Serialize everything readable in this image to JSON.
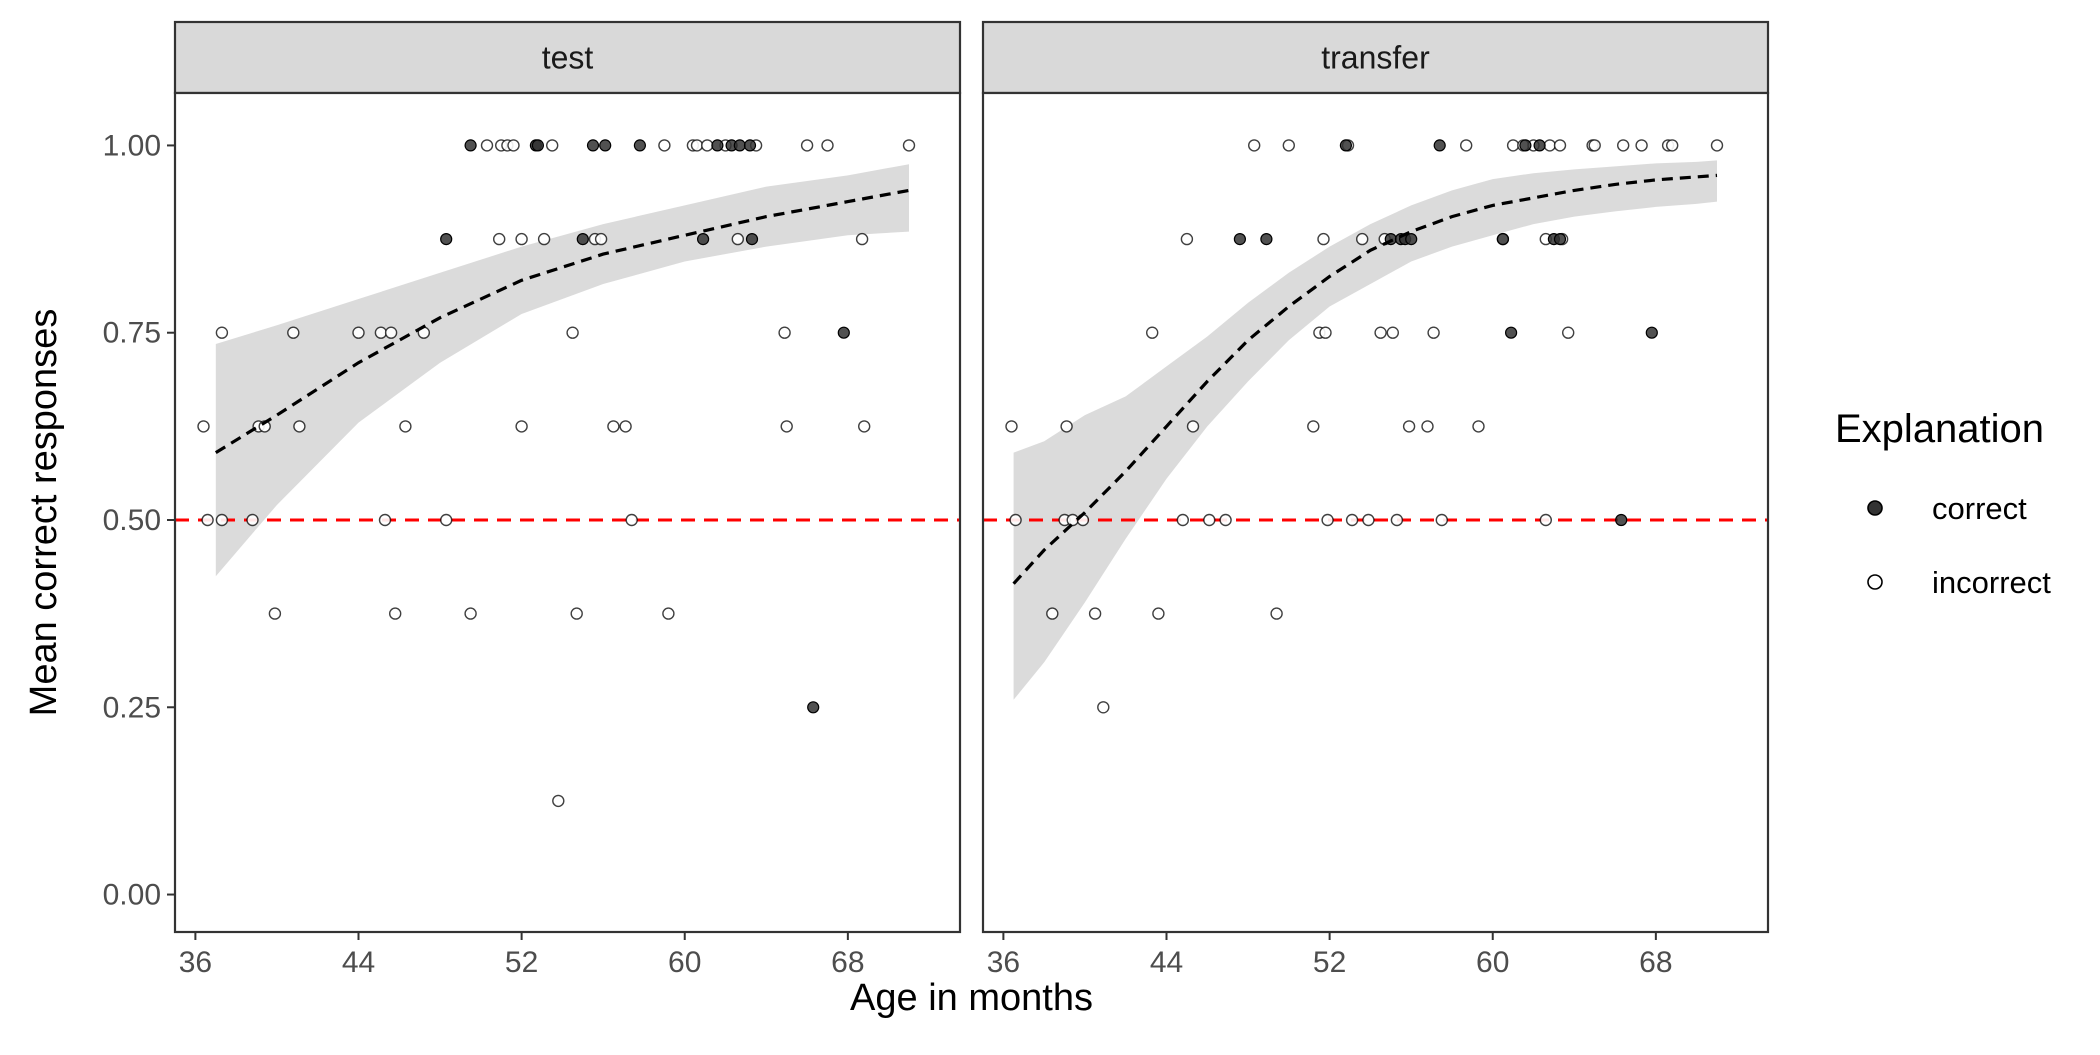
{
  "chart_data": {
    "type": "scatter",
    "xlabel": "Age in months",
    "ylabel": "Mean correct responses",
    "xlim": [
      35,
      73.5
    ],
    "ylim": [
      -0.05,
      1.07
    ],
    "x_ticks": [
      36,
      44,
      52,
      60,
      68
    ],
    "y_ticks": [
      0.0,
      0.25,
      0.5,
      0.75,
      1.0
    ],
    "y_tick_labels": [
      "0.00",
      "0.25",
      "0.50",
      "0.75",
      "1.00"
    ],
    "reference_line": {
      "y": 0.5,
      "style": "dashed",
      "color": "#ff0000"
    },
    "legend": {
      "title": "Explanation",
      "position": "right",
      "entries": [
        {
          "label": "correct",
          "fill": "#333333"
        },
        {
          "label": "incorrect",
          "fill": "#ffffff"
        }
      ]
    },
    "colors": {
      "panel_strip": "#d9d9d9",
      "ribbon": "#d9d9d9",
      "trend": "#000000",
      "reference": "#ff0000"
    },
    "panels": [
      {
        "label": "test",
        "trend_line": {
          "x": [
            37,
            40,
            44,
            48,
            52,
            56,
            60,
            64,
            68,
            71
          ],
          "y": [
            0.59,
            0.64,
            0.71,
            0.77,
            0.82,
            0.855,
            0.88,
            0.905,
            0.925,
            0.94
          ]
        },
        "confidence_band": {
          "x": [
            37,
            40,
            44,
            48,
            52,
            56,
            60,
            64,
            68,
            71
          ],
          "lower": [
            0.425,
            0.52,
            0.63,
            0.71,
            0.775,
            0.815,
            0.845,
            0.865,
            0.88,
            0.885
          ],
          "upper": [
            0.735,
            0.76,
            0.795,
            0.83,
            0.865,
            0.895,
            0.92,
            0.945,
            0.96,
            0.975
          ]
        },
        "points_correct": [
          [
            49.5,
            1.0
          ],
          [
            52.7,
            1.0
          ],
          [
            52.8,
            1.0
          ],
          [
            55.5,
            1.0
          ],
          [
            56.1,
            1.0
          ],
          [
            57.8,
            1.0
          ],
          [
            61.6,
            1.0
          ],
          [
            62.3,
            1.0
          ],
          [
            62.7,
            1.0
          ],
          [
            63.2,
            1.0
          ],
          [
            48.3,
            0.875
          ],
          [
            55.0,
            0.875
          ],
          [
            60.9,
            0.875
          ],
          [
            63.3,
            0.875
          ],
          [
            67.8,
            0.75
          ],
          [
            66.3,
            0.25
          ]
        ],
        "points_incorrect": [
          [
            50.3,
            1.0
          ],
          [
            51.0,
            1.0
          ],
          [
            51.3,
            1.0
          ],
          [
            51.6,
            1.0
          ],
          [
            53.5,
            1.0
          ],
          [
            59.0,
            1.0
          ],
          [
            60.4,
            1.0
          ],
          [
            60.6,
            1.0
          ],
          [
            61.1,
            1.0
          ],
          [
            62.0,
            1.0
          ],
          [
            63.5,
            1.0
          ],
          [
            66.0,
            1.0
          ],
          [
            67.0,
            1.0
          ],
          [
            71.0,
            1.0
          ],
          [
            50.9,
            0.875
          ],
          [
            52.0,
            0.875
          ],
          [
            53.1,
            0.875
          ],
          [
            55.6,
            0.875
          ],
          [
            55.9,
            0.875
          ],
          [
            62.6,
            0.875
          ],
          [
            68.7,
            0.875
          ],
          [
            37.3,
            0.75
          ],
          [
            40.8,
            0.75
          ],
          [
            44.0,
            0.75
          ],
          [
            45.1,
            0.75
          ],
          [
            45.6,
            0.75
          ],
          [
            47.2,
            0.75
          ],
          [
            54.5,
            0.75
          ],
          [
            64.9,
            0.75
          ],
          [
            36.4,
            0.625
          ],
          [
            39.1,
            0.625
          ],
          [
            39.4,
            0.625
          ],
          [
            41.1,
            0.625
          ],
          [
            46.3,
            0.625
          ],
          [
            52.0,
            0.625
          ],
          [
            56.5,
            0.625
          ],
          [
            57.1,
            0.625
          ],
          [
            65.0,
            0.625
          ],
          [
            68.8,
            0.625
          ],
          [
            36.6,
            0.5
          ],
          [
            37.3,
            0.5
          ],
          [
            38.8,
            0.5
          ],
          [
            45.3,
            0.5
          ],
          [
            48.3,
            0.5
          ],
          [
            57.4,
            0.5
          ],
          [
            39.9,
            0.375
          ],
          [
            45.8,
            0.375
          ],
          [
            49.5,
            0.375
          ],
          [
            54.7,
            0.375
          ],
          [
            59.2,
            0.375
          ],
          [
            53.8,
            0.125
          ]
        ]
      },
      {
        "label": "transfer",
        "trend_line": {
          "x": [
            36.5,
            38,
            40,
            42,
            44,
            46,
            48,
            50,
            52,
            54,
            56,
            58,
            60,
            62,
            64,
            66,
            68,
            70,
            71
          ],
          "y": [
            0.415,
            0.46,
            0.51,
            0.565,
            0.625,
            0.685,
            0.74,
            0.785,
            0.825,
            0.86,
            0.885,
            0.905,
            0.92,
            0.93,
            0.94,
            0.948,
            0.954,
            0.958,
            0.96
          ]
        },
        "confidence_band": {
          "x": [
            36.5,
            38,
            40,
            42,
            44,
            46,
            48,
            50,
            52,
            54,
            56,
            58,
            60,
            62,
            64,
            66,
            68,
            70,
            71
          ],
          "lower": [
            0.26,
            0.31,
            0.39,
            0.475,
            0.555,
            0.625,
            0.685,
            0.74,
            0.785,
            0.815,
            0.845,
            0.865,
            0.88,
            0.895,
            0.905,
            0.912,
            0.918,
            0.922,
            0.925
          ],
          "upper": [
            0.59,
            0.605,
            0.64,
            0.665,
            0.705,
            0.745,
            0.79,
            0.83,
            0.865,
            0.895,
            0.92,
            0.94,
            0.955,
            0.963,
            0.968,
            0.972,
            0.976,
            0.978,
            0.98
          ]
        },
        "points_correct": [
          [
            52.8,
            1.0
          ],
          [
            57.4,
            1.0
          ],
          [
            61.6,
            1.0
          ],
          [
            62.3,
            1.0
          ],
          [
            47.6,
            0.875
          ],
          [
            48.9,
            0.875
          ],
          [
            55.0,
            0.875
          ],
          [
            55.5,
            0.875
          ],
          [
            55.7,
            0.875
          ],
          [
            56.0,
            0.875
          ],
          [
            60.5,
            0.875
          ],
          [
            63.0,
            0.875
          ],
          [
            63.3,
            0.875
          ],
          [
            60.9,
            0.75
          ],
          [
            67.8,
            0.75
          ],
          [
            66.3,
            0.5
          ]
        ],
        "points_incorrect": [
          [
            48.3,
            1.0
          ],
          [
            50.0,
            1.0
          ],
          [
            52.9,
            1.0
          ],
          [
            58.7,
            1.0
          ],
          [
            61.0,
            1.0
          ],
          [
            61.5,
            1.0
          ],
          [
            62.0,
            1.0
          ],
          [
            62.8,
            1.0
          ],
          [
            63.3,
            1.0
          ],
          [
            64.9,
            1.0
          ],
          [
            65.0,
            1.0
          ],
          [
            66.4,
            1.0
          ],
          [
            67.3,
            1.0
          ],
          [
            68.6,
            1.0
          ],
          [
            68.8,
            1.0
          ],
          [
            71.0,
            1.0
          ],
          [
            45.0,
            0.875
          ],
          [
            51.7,
            0.875
          ],
          [
            53.6,
            0.875
          ],
          [
            54.7,
            0.875
          ],
          [
            60.5,
            0.875
          ],
          [
            62.6,
            0.875
          ],
          [
            63.4,
            0.875
          ],
          [
            43.3,
            0.75
          ],
          [
            51.5,
            0.75
          ],
          [
            51.8,
            0.75
          ],
          [
            54.5,
            0.75
          ],
          [
            55.1,
            0.75
          ],
          [
            57.1,
            0.75
          ],
          [
            63.7,
            0.75
          ],
          [
            36.4,
            0.625
          ],
          [
            39.1,
            0.625
          ],
          [
            45.3,
            0.625
          ],
          [
            51.2,
            0.625
          ],
          [
            55.9,
            0.625
          ],
          [
            56.8,
            0.625
          ],
          [
            59.3,
            0.625
          ],
          [
            36.6,
            0.5
          ],
          [
            39.0,
            0.5
          ],
          [
            39.4,
            0.5
          ],
          [
            39.9,
            0.5
          ],
          [
            44.8,
            0.5
          ],
          [
            46.1,
            0.5
          ],
          [
            46.9,
            0.5
          ],
          [
            51.9,
            0.5
          ],
          [
            53.1,
            0.5
          ],
          [
            53.9,
            0.5
          ],
          [
            55.3,
            0.5
          ],
          [
            57.5,
            0.5
          ],
          [
            62.6,
            0.5
          ],
          [
            38.4,
            0.375
          ],
          [
            40.5,
            0.375
          ],
          [
            43.6,
            0.375
          ],
          [
            49.4,
            0.375
          ],
          [
            40.9,
            0.25
          ]
        ]
      }
    ]
  }
}
